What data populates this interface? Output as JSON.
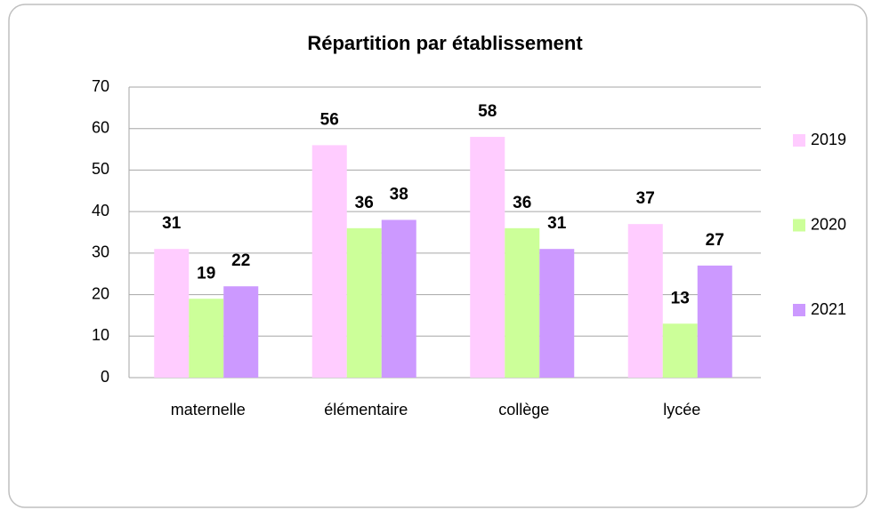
{
  "chart_data": {
    "type": "bar",
    "title": "Répartition par établissement",
    "categories": [
      "maternelle",
      "élémentaire",
      "collège",
      "lycée"
    ],
    "series": [
      {
        "name": "2019",
        "color": "#ffccff",
        "values": [
          31,
          56,
          58,
          37
        ]
      },
      {
        "name": "2020",
        "color": "#ccff99",
        "values": [
          19,
          36,
          36,
          13
        ]
      },
      {
        "name": "2021",
        "color": "#cc99ff",
        "values": [
          22,
          38,
          31,
          27
        ]
      }
    ],
    "ylim": [
      0,
      70
    ],
    "yticks": [
      0,
      10,
      20,
      30,
      40,
      50,
      60,
      70
    ],
    "grid": true,
    "legend": "right"
  }
}
